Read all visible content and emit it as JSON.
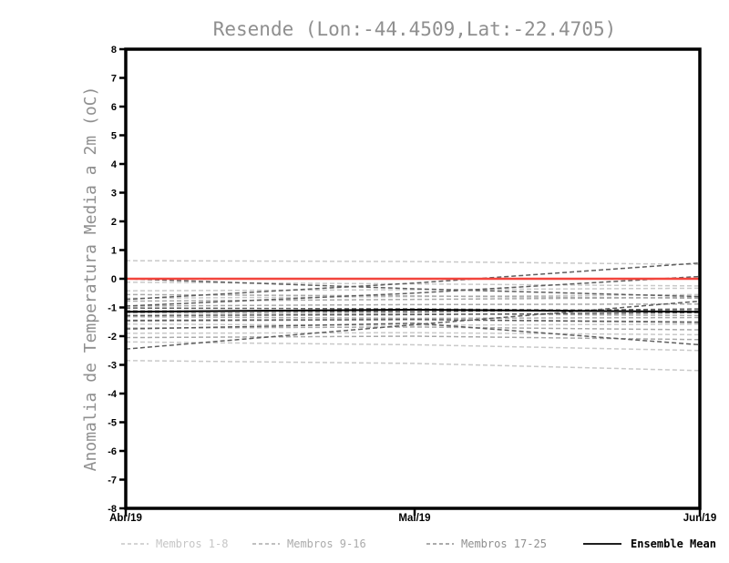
{
  "chart_data": {
    "type": "line",
    "title": "Resende (Lon:-44.4509,Lat:-22.4705)",
    "ylabel": "Anomalia de Temperatura Media a 2m (oC)",
    "xlabel": "",
    "x_categories": [
      "Abr/19",
      "Mai/19",
      "Jun/19"
    ],
    "ylim": [
      -8,
      8
    ],
    "ytick_step": 1,
    "grid": false,
    "legend_position": "bottom",
    "zero_line": {
      "color": "#f2453d",
      "values": [
        0,
        0,
        0
      ]
    },
    "series_groups": [
      {
        "name": "Membros 1-8",
        "color": "#c9c9c9",
        "line_style": "dashed",
        "members": [
          [
            0.63,
            0.6,
            0.5
          ],
          [
            -0.12,
            -0.18,
            -0.25
          ],
          [
            -0.42,
            -0.38,
            -0.33
          ],
          [
            -0.68,
            -0.62,
            -0.55
          ],
          [
            -1.58,
            -1.62,
            -1.58
          ],
          [
            -1.9,
            -1.88,
            -1.95
          ],
          [
            -2.2,
            -2.3,
            -2.5
          ],
          [
            -2.85,
            -2.95,
            -3.2
          ]
        ]
      },
      {
        "name": "Membros 9-16",
        "color": "#a9a9a9",
        "line_style": "dashed",
        "members": [
          [
            -0.55,
            -0.6,
            -0.68
          ],
          [
            -0.78,
            -0.72,
            -0.65
          ],
          [
            -0.95,
            -0.9,
            -0.88
          ],
          [
            -1.18,
            -1.22,
            -1.28
          ],
          [
            -1.32,
            -1.38,
            -1.35
          ],
          [
            -1.48,
            -1.42,
            -1.5
          ],
          [
            -1.72,
            -1.68,
            -1.78
          ],
          [
            -2.05,
            -2.0,
            -2.12
          ]
        ]
      },
      {
        "name": "Membros 17-25",
        "color": "#5e5e5e",
        "line_style": "dashed",
        "members": [
          [
            0.0,
            -0.35,
            -0.62
          ],
          [
            -2.45,
            -1.6,
            -0.78
          ],
          [
            -0.72,
            -0.15,
            0.55
          ],
          [
            -0.95,
            -0.5,
            0.08
          ],
          [
            -1.02,
            -1.05,
            -1.12
          ],
          [
            -1.28,
            -1.25,
            -1.18
          ],
          [
            -1.45,
            -1.42,
            -1.52
          ],
          [
            -1.75,
            -1.55,
            -2.3
          ],
          [
            -1.12,
            -1.15,
            -1.05
          ]
        ]
      }
    ],
    "ensemble_mean": {
      "name": "Ensemble Mean",
      "color": "#000000",
      "line_style": "solid",
      "values": [
        -1.15,
        -1.08,
        -1.15
      ]
    }
  },
  "legend": {
    "items": [
      {
        "label": "Membros 1-8",
        "color": "#c6c6c6",
        "dash": "4 3",
        "weight": "normal"
      },
      {
        "label": "Membros 9-16",
        "color": "#ababab",
        "dash": "4 3",
        "weight": "normal"
      },
      {
        "label": "Membros 17-25",
        "color": "#8f8f8f",
        "dash": "4 3",
        "weight": "normal"
      },
      {
        "label": "Ensemble Mean",
        "color": "#000000",
        "dash": "none",
        "weight": "bold"
      }
    ]
  }
}
